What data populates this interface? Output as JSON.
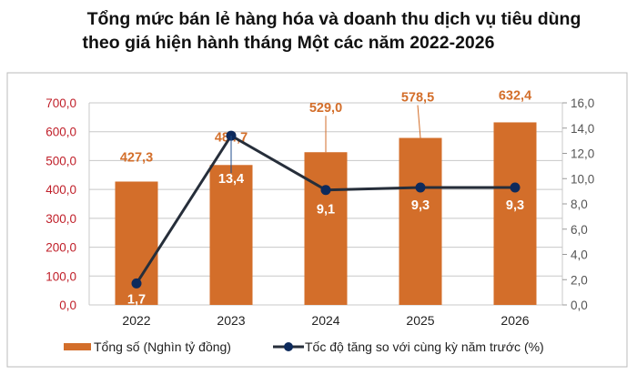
{
  "title_lines": [
    "Tổng mức bán lẻ hàng hóa và doanh thu dịch vụ tiêu dùng",
    "theo giá hiện hành tháng Một các năm 2022-2026"
  ],
  "chart_data": {
    "type": "bar+line",
    "categories": [
      "2022",
      "2023",
      "2024",
      "2025",
      "2026"
    ],
    "series": [
      {
        "name": "Tổng số (Nghìn tỷ đồng)",
        "type": "bar",
        "axis": "left",
        "values": [
          427.3,
          484.7,
          529.0,
          578.5,
          632.4
        ],
        "labels": [
          "427,3",
          "484,7",
          "529,0",
          "578,5",
          "632,4"
        ],
        "color": "#D36E2A"
      },
      {
        "name": "Tốc độ tăng so với cùng kỳ năm trước (%)",
        "type": "line",
        "axis": "right",
        "values": [
          1.7,
          13.4,
          9.1,
          9.3,
          9.3
        ],
        "labels": [
          "1,7",
          "13,4",
          "9,1",
          "9,3",
          "9,3"
        ],
        "color": "#0D2A5C"
      }
    ],
    "y_left": {
      "range": [
        0,
        700
      ],
      "ticks": [
        "0,0",
        "100,0",
        "200,0",
        "300,0",
        "400,0",
        "500,0",
        "600,0",
        "700,0"
      ],
      "color": "#C0202A"
    },
    "y_right": {
      "range": [
        0,
        16
      ],
      "ticks": [
        "0,0",
        "2,0",
        "4,0",
        "6,0",
        "8,0",
        "10,0",
        "12,0",
        "14,0",
        "16,0"
      ]
    },
    "grid": true,
    "legend_position": "bottom"
  }
}
